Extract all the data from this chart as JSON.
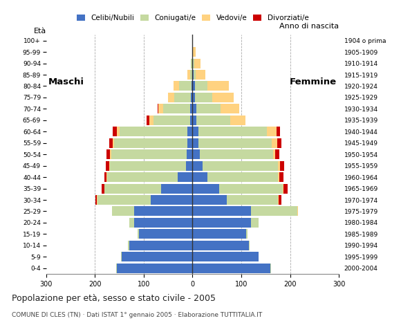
{
  "age_groups": [
    "0-4",
    "5-9",
    "10-14",
    "15-19",
    "20-24",
    "25-29",
    "30-34",
    "35-39",
    "40-44",
    "45-49",
    "50-54",
    "55-59",
    "60-64",
    "65-69",
    "70-74",
    "75-79",
    "80-84",
    "85-89",
    "90-94",
    "95-99",
    "100+"
  ],
  "birth_years": [
    "2000-2004",
    "1995-1999",
    "1990-1994",
    "1985-1989",
    "1980-1984",
    "1975-1979",
    "1970-1974",
    "1965-1969",
    "1960-1964",
    "1955-1959",
    "1950-1954",
    "1945-1949",
    "1940-1944",
    "1935-1939",
    "1930-1934",
    "1925-1929",
    "1920-1924",
    "1915-1919",
    "1910-1914",
    "1905-1909",
    "1904 o prima"
  ],
  "males": {
    "celibi": [
      155,
      145,
      130,
      110,
      120,
      120,
      85,
      65,
      30,
      14,
      12,
      10,
      10,
      5,
      5,
      3,
      2,
      0,
      0,
      0,
      0
    ],
    "coniugati": [
      1,
      1,
      2,
      3,
      10,
      45,
      110,
      115,
      145,
      155,
      155,
      150,
      140,
      75,
      55,
      35,
      25,
      5,
      3,
      1,
      0
    ],
    "vedovi": [
      0,
      0,
      0,
      0,
      0,
      0,
      1,
      1,
      1,
      2,
      2,
      3,
      5,
      8,
      10,
      12,
      12,
      5,
      1,
      0,
      0
    ],
    "divorziati": [
      0,
      0,
      0,
      0,
      0,
      0,
      3,
      5,
      5,
      7,
      7,
      8,
      8,
      6,
      1,
      0,
      0,
      0,
      0,
      0,
      0
    ]
  },
  "females": {
    "nubili": [
      160,
      135,
      115,
      110,
      120,
      120,
      70,
      55,
      30,
      20,
      15,
      12,
      12,
      8,
      8,
      5,
      5,
      2,
      1,
      0,
      0
    ],
    "coniugate": [
      1,
      1,
      2,
      3,
      15,
      95,
      105,
      130,
      145,
      155,
      150,
      150,
      140,
      70,
      50,
      35,
      25,
      5,
      3,
      1,
      0
    ],
    "vedove": [
      0,
      0,
      0,
      0,
      0,
      1,
      2,
      2,
      3,
      5,
      5,
      12,
      20,
      30,
      38,
      45,
      45,
      20,
      12,
      5,
      1
    ],
    "divorziate": [
      0,
      0,
      0,
      0,
      0,
      0,
      5,
      8,
      8,
      8,
      8,
      8,
      8,
      0,
      0,
      0,
      0,
      0,
      0,
      0,
      0
    ]
  },
  "colors": {
    "celibi": "#4472c4",
    "coniugati": "#c5d9a0",
    "vedovi": "#ffd280",
    "divorziati": "#cc0000"
  },
  "legend_labels": [
    "Celibi/Nubili",
    "Coniugati/e",
    "Vedovi/e",
    "Divorziati/e"
  ],
  "title": "Popolazione per età, sesso e stato civile - 2005",
  "subtitle": "COMUNE DI CLES (TN) · Dati ISTAT 1° gennaio 2005 · Elaborazione TUTTITALIA.IT",
  "xlim": 300,
  "bg_color": "#ffffff",
  "bar_height": 0.85
}
